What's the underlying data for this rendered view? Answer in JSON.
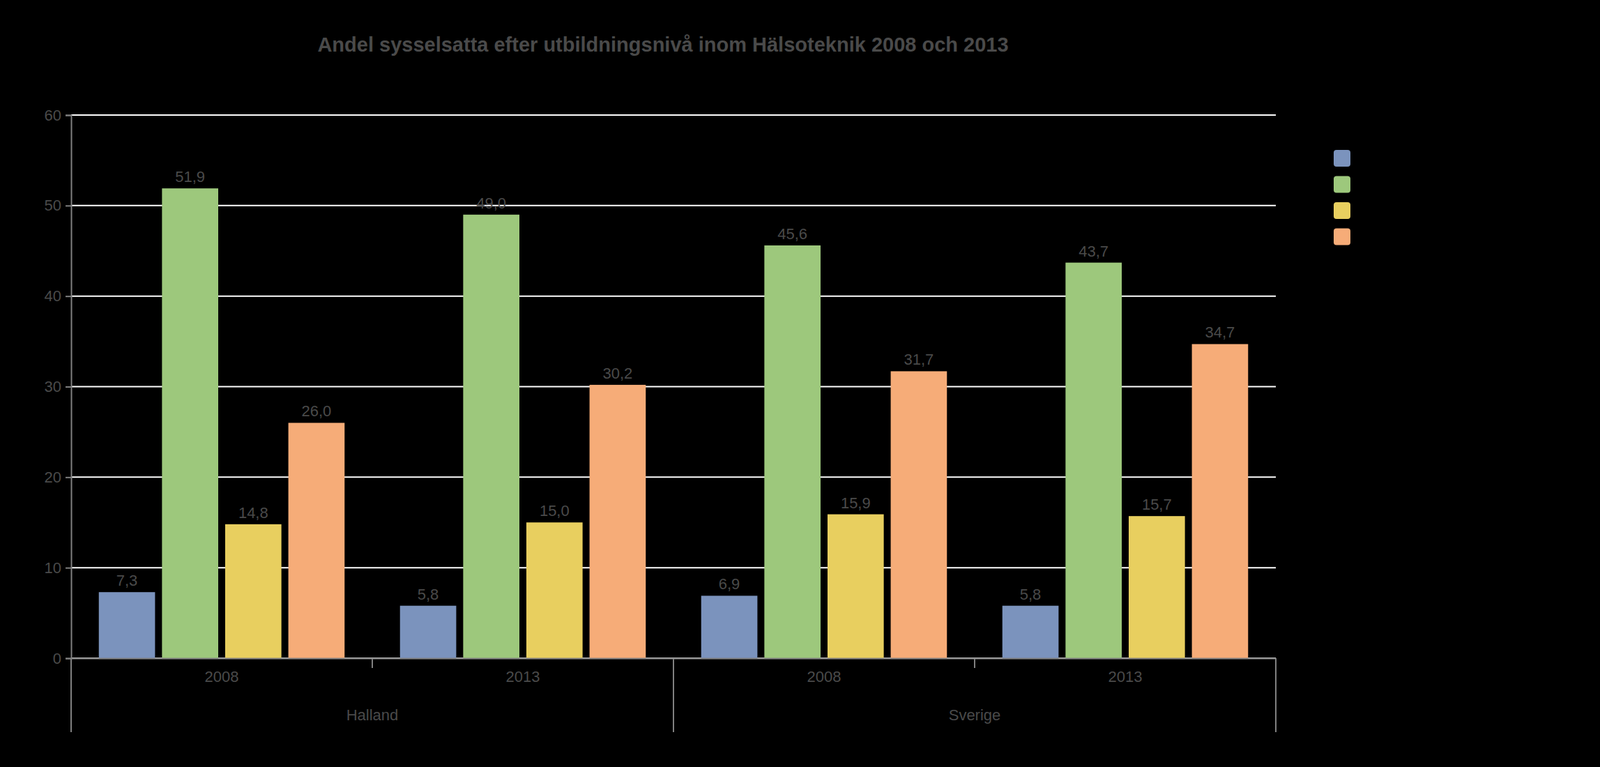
{
  "chart_data": {
    "type": "bar",
    "title": "Andel sysselsatta efter utbildningsnivå inom Hälsoteknik 2008 och 2013",
    "categories": [
      "2008",
      "2013",
      "2008",
      "2013"
    ],
    "category_groups": [
      "Halland",
      "Halland",
      "Sverige",
      "Sverige"
    ],
    "series": [
      {
        "color": "#7b93bd",
        "values": [
          7.3,
          5.8,
          6.9,
          5.8
        ],
        "value_labels": [
          "7,3",
          "5,8",
          "6,9",
          "5,8"
        ]
      },
      {
        "color": "#9dc87c",
        "values": [
          51.9,
          49.0,
          45.6,
          43.7
        ],
        "value_labels": [
          "51,9",
          "49,0",
          "45,6",
          "43,7"
        ]
      },
      {
        "color": "#e8cf5f",
        "values": [
          14.8,
          15.0,
          15.9,
          15.7
        ],
        "value_labels": [
          "14,8",
          "15,0",
          "15,9",
          "15,7"
        ]
      },
      {
        "color": "#f6ac78",
        "values": [
          26.0,
          30.2,
          31.7,
          34.7
        ],
        "value_labels": [
          "26,0",
          "30,2",
          "31,7",
          "34,7"
        ]
      }
    ],
    "ylim": [
      0,
      60
    ],
    "yticks": [
      0,
      10,
      20,
      30,
      40,
      50,
      60
    ],
    "grid": true,
    "data_labels": true,
    "legend": "right"
  }
}
